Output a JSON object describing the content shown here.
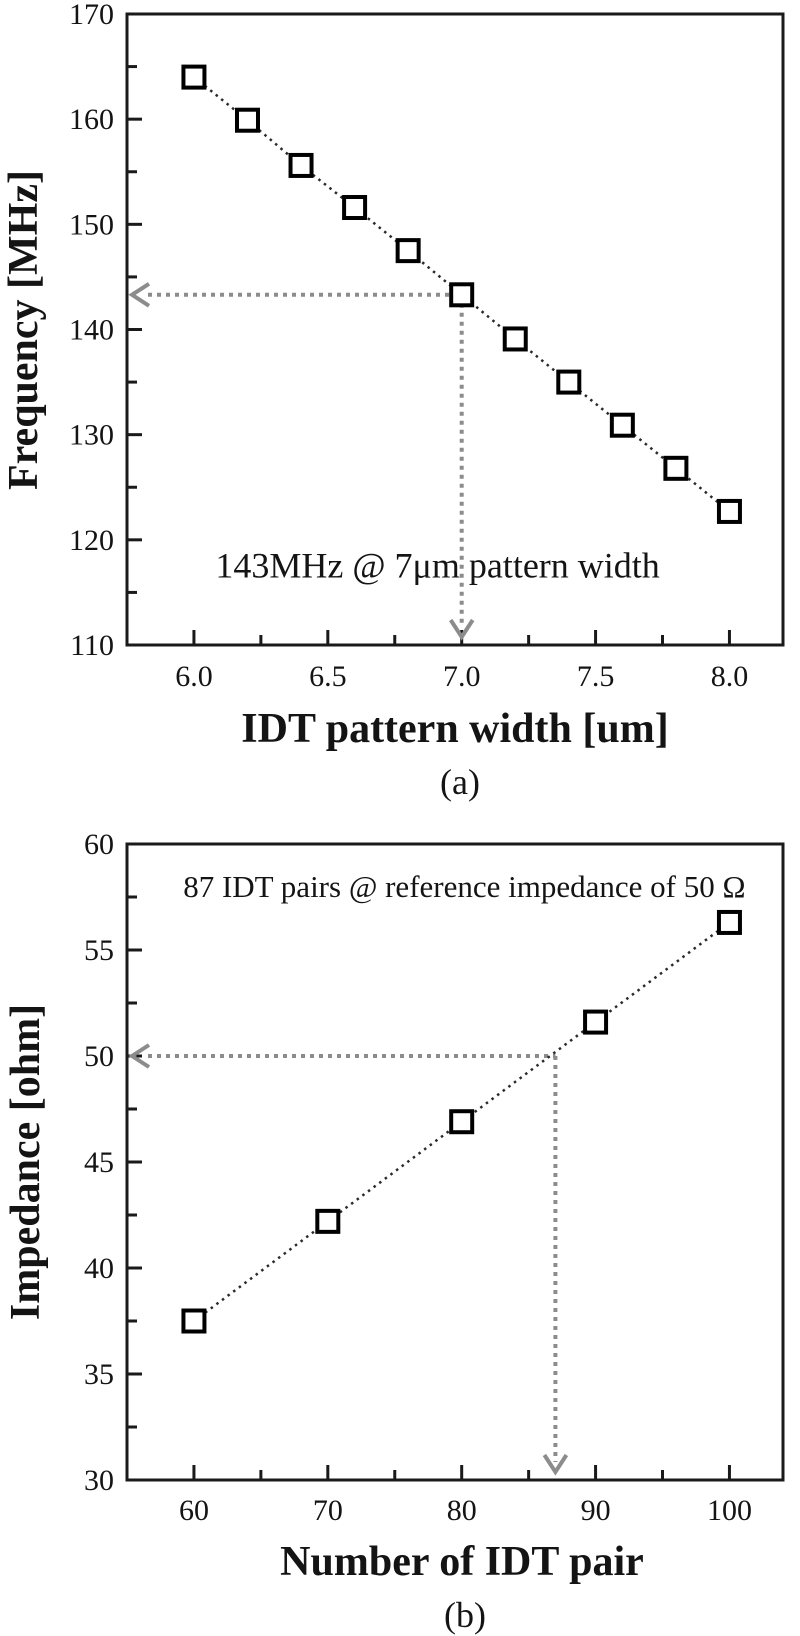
{
  "page": {
    "background": "#ffffff"
  },
  "colors": {
    "ink": "#1a1a1a",
    "marker_stroke": "#000000",
    "trend_dots": "#2a2a2a",
    "guide_gray": "#8c8c8c"
  },
  "chart_data": [
    {
      "id": "a",
      "type": "scatter",
      "caption": "(a)",
      "xlabel": "IDT pattern width [um]",
      "ylabel": "Frequency [MHz]",
      "xlim": [
        5.75,
        8.2
      ],
      "ylim": [
        110,
        170
      ],
      "grid": false,
      "xticks": {
        "major": [
          6.0,
          6.5,
          7.0,
          7.5,
          8.0
        ],
        "labels": [
          "6.0",
          "6.5",
          "7.0",
          "7.5",
          "8.0"
        ],
        "minor": [
          6.25,
          6.75,
          7.25,
          7.75
        ]
      },
      "yticks": {
        "major": [
          110,
          120,
          130,
          140,
          150,
          160,
          170
        ],
        "labels": [
          "110",
          "120",
          "130",
          "140",
          "150",
          "160",
          "170"
        ],
        "minor": [
          115,
          125,
          135,
          145,
          155,
          165
        ]
      },
      "series": [
        {
          "name": "frequency-vs-pattern-width",
          "marker": "open-square",
          "line": "dotted",
          "x": [
            6.0,
            6.2,
            6.4,
            6.6,
            6.8,
            7.0,
            7.2,
            7.4,
            7.6,
            7.8,
            8.0
          ],
          "y": [
            164.0,
            159.9,
            155.6,
            151.6,
            147.5,
            143.3,
            139.1,
            135.0,
            130.9,
            126.8,
            122.7
          ]
        }
      ],
      "annotation": {
        "text": "143MHz @ 7μm pattern width",
        "x": 6.91,
        "y": 116.4
      },
      "guide": {
        "x": 7.0,
        "y": 143.3,
        "style": "dotted gray arrows to left and bottom axes"
      }
    },
    {
      "id": "b",
      "type": "scatter",
      "caption": "(b)",
      "xlabel": "Number of IDT pair",
      "ylabel": "Impedance [ohm]",
      "xlim": [
        55,
        104
      ],
      "ylim": [
        30,
        60
      ],
      "grid": false,
      "xticks": {
        "major": [
          60,
          70,
          80,
          90,
          100
        ],
        "labels": [
          "60",
          "70",
          "80",
          "90",
          "100"
        ],
        "minor": [
          65,
          75,
          85,
          95
        ]
      },
      "yticks": {
        "major": [
          30,
          35,
          40,
          45,
          50,
          55,
          60
        ],
        "labels": [
          "30",
          "35",
          "40",
          "45",
          "50",
          "55",
          "60"
        ],
        "minor": [
          32.5,
          37.5,
          42.5,
          47.5,
          52.5,
          57.5
        ]
      },
      "series": [
        {
          "name": "impedance-vs-idt-pairs",
          "marker": "open-square",
          "line": "dotted",
          "x": [
            60,
            70,
            80,
            90,
            100
          ],
          "y": [
            37.5,
            42.2,
            46.9,
            51.6,
            56.3
          ]
        }
      ],
      "annotation": {
        "text": "87 IDT pairs @ reference impedance of 50 Ω",
        "x": 80.2,
        "y": 57.5
      },
      "guide": {
        "x": 87,
        "y": 50,
        "style": "dotted gray arrows to left and bottom axes"
      }
    }
  ]
}
